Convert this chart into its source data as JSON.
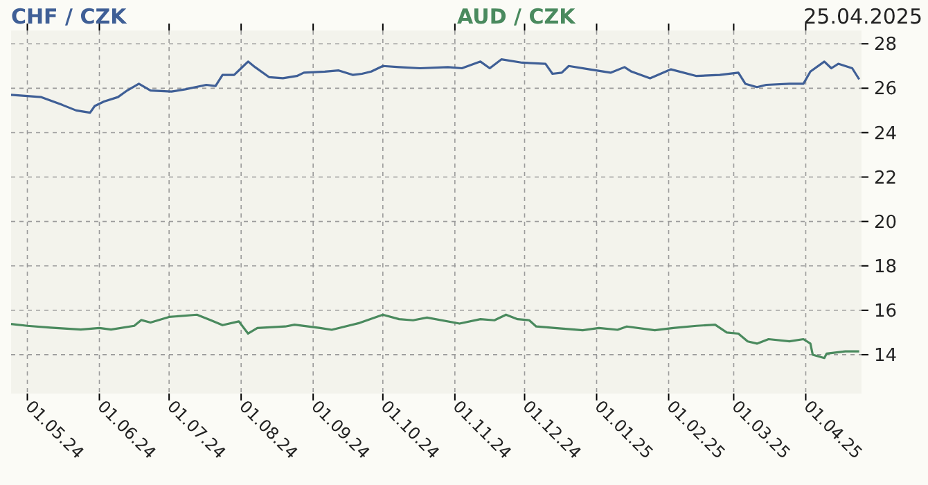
{
  "chart_data": {
    "type": "line",
    "legend": "top",
    "grid": true,
    "annotations": [
      "25.04.2025"
    ],
    "xlim": [
      "2024-04-24",
      "2025-04-25"
    ],
    "xticks": [
      {
        "value": "2024-05-01",
        "label": "01.05.24"
      },
      {
        "value": "2024-06-01",
        "label": "01.06.24"
      },
      {
        "value": "2024-07-01",
        "label": "01.07.24"
      },
      {
        "value": "2024-08-01",
        "label": "01.08.24"
      },
      {
        "value": "2024-09-01",
        "label": "01.09.24"
      },
      {
        "value": "2024-10-01",
        "label": "01.10.24"
      },
      {
        "value": "2024-11-01",
        "label": "01.11.24"
      },
      {
        "value": "2024-12-01",
        "label": "01.12.24"
      },
      {
        "value": "2025-01-01",
        "label": "01.01.25"
      },
      {
        "value": "2025-02-01",
        "label": "01.02.25"
      },
      {
        "value": "2025-03-01",
        "label": "01.03.25"
      },
      {
        "value": "2025-04-01",
        "label": "01.04.25"
      }
    ],
    "ylim": [
      12.25,
      28.6
    ],
    "yticks": [
      14,
      16,
      18,
      20,
      22,
      24,
      26,
      28
    ],
    "series": [
      {
        "name": "CHF / CZK",
        "color": "#3f5f96",
        "x": [
          "2024-04-24",
          "2024-05-01",
          "2024-05-07",
          "2024-05-16",
          "2024-05-22",
          "2024-05-28",
          "2024-05-30",
          "2024-06-03",
          "2024-06-09",
          "2024-06-13",
          "2024-06-18",
          "2024-06-23",
          "2024-07-02",
          "2024-07-08",
          "2024-07-17",
          "2024-07-21",
          "2024-07-24",
          "2024-07-29",
          "2024-08-01",
          "2024-08-04",
          "2024-08-07",
          "2024-08-13",
          "2024-08-19",
          "2024-08-25",
          "2024-08-28",
          "2024-09-06",
          "2024-09-12",
          "2024-09-18",
          "2024-09-22",
          "2024-09-26",
          "2024-10-01",
          "2024-10-08",
          "2024-10-17",
          "2024-10-29",
          "2024-11-04",
          "2024-11-12",
          "2024-11-16",
          "2024-11-21",
          "2024-11-30",
          "2024-12-10",
          "2024-12-13",
          "2024-12-17",
          "2024-12-20",
          "2024-12-29",
          "2025-01-07",
          "2025-01-13",
          "2025-01-16",
          "2025-01-24",
          "2025-02-02",
          "2025-02-13",
          "2025-02-23",
          "2025-03-03",
          "2025-03-06",
          "2025-03-11",
          "2025-03-15",
          "2025-03-25",
          "2025-03-31",
          "2025-04-03",
          "2025-04-09",
          "2025-04-12",
          "2025-04-15",
          "2025-04-21",
          "2025-04-24"
        ],
        "values": [
          25.7,
          25.65,
          25.6,
          25.25,
          25.0,
          24.9,
          25.2,
          25.4,
          25.6,
          25.9,
          26.2,
          25.9,
          25.85,
          25.95,
          26.15,
          26.1,
          26.6,
          26.6,
          26.9,
          27.2,
          26.95,
          26.5,
          26.45,
          26.55,
          26.7,
          26.75,
          26.8,
          26.6,
          26.65,
          26.75,
          27.0,
          26.95,
          26.9,
          26.95,
          26.9,
          27.2,
          26.9,
          27.3,
          27.15,
          27.1,
          26.65,
          26.7,
          27.0,
          26.85,
          26.7,
          26.95,
          26.75,
          26.45,
          26.85,
          26.55,
          26.6,
          26.7,
          26.2,
          26.05,
          26.15,
          26.2,
          26.2,
          26.75,
          27.2,
          26.9,
          27.1,
          26.9,
          26.4
        ]
      },
      {
        "name": "AUD / CZK",
        "type": "line",
        "color": "#4a8a5e",
        "x": [
          "2024-04-24",
          "2024-05-01",
          "2024-05-11",
          "2024-05-24",
          "2024-06-01",
          "2024-06-06",
          "2024-06-16",
          "2024-06-19",
          "2024-06-23",
          "2024-07-01",
          "2024-07-13",
          "2024-07-19",
          "2024-07-24",
          "2024-07-31",
          "2024-08-04",
          "2024-08-08",
          "2024-08-20",
          "2024-08-24",
          "2024-09-04",
          "2024-09-09",
          "2024-09-21",
          "2024-10-01",
          "2024-10-08",
          "2024-10-14",
          "2024-10-20",
          "2024-11-03",
          "2024-11-12",
          "2024-11-18",
          "2024-11-23",
          "2024-11-28",
          "2024-12-03",
          "2024-12-06",
          "2024-12-14",
          "2024-12-26",
          "2025-01-02",
          "2025-01-10",
          "2025-01-14",
          "2025-01-26",
          "2025-02-03",
          "2025-02-13",
          "2025-02-21",
          "2025-02-26",
          "2025-03-03",
          "2025-03-07",
          "2025-03-11",
          "2025-03-16",
          "2025-03-25",
          "2025-03-31",
          "2025-04-03",
          "2025-04-04",
          "2025-04-09",
          "2025-04-10",
          "2025-04-18",
          "2025-04-24"
        ],
        "values": [
          15.38,
          15.3,
          15.22,
          15.13,
          15.2,
          15.13,
          15.3,
          15.56,
          15.45,
          15.7,
          15.8,
          15.55,
          15.33,
          15.5,
          14.95,
          15.2,
          15.27,
          15.35,
          15.2,
          15.12,
          15.43,
          15.8,
          15.6,
          15.55,
          15.67,
          15.4,
          15.6,
          15.55,
          15.8,
          15.6,
          15.55,
          15.27,
          15.2,
          15.1,
          15.2,
          15.12,
          15.27,
          15.1,
          15.2,
          15.3,
          15.35,
          15.0,
          14.95,
          14.6,
          14.5,
          14.7,
          14.6,
          14.7,
          14.5,
          14.0,
          13.85,
          14.05,
          14.15,
          14.15
        ]
      }
    ]
  }
}
